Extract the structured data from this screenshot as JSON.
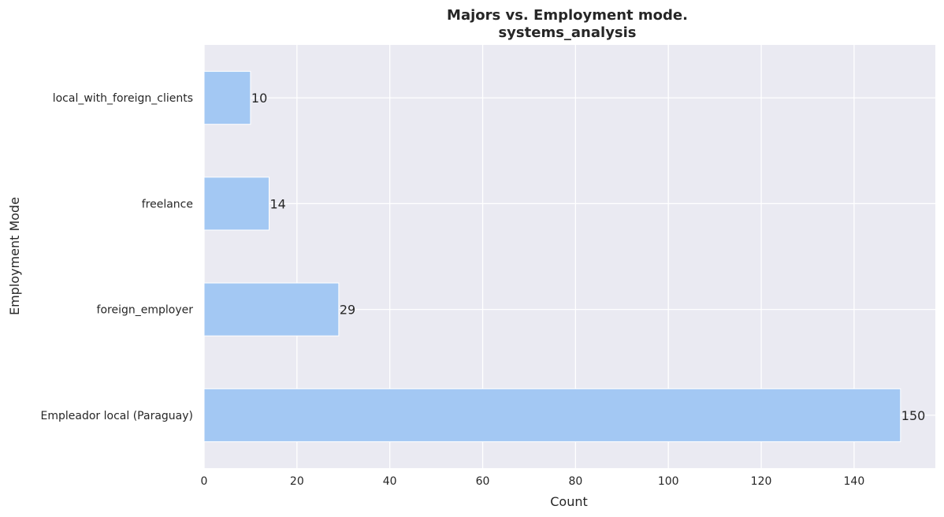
{
  "chart_data": {
    "type": "bar",
    "orientation": "horizontal",
    "title_line1": "Majors vs. Employment mode.",
    "title_line2": "systems_analysis",
    "xlabel": "Count",
    "ylabel": "Employment Mode",
    "categories": [
      "Empleador local (Paraguay)",
      "foreign_employer",
      "freelance",
      "local_with_foreign_clients"
    ],
    "values": [
      150,
      29,
      14,
      10
    ],
    "xlim": [
      0,
      157.5
    ],
    "xticks": [
      0,
      20,
      40,
      60,
      80,
      100,
      120,
      140
    ],
    "grid": true,
    "colors": {
      "bar": "#a3c8f3",
      "background": "#eaeaf2",
      "grid": "#ffffff"
    }
  }
}
